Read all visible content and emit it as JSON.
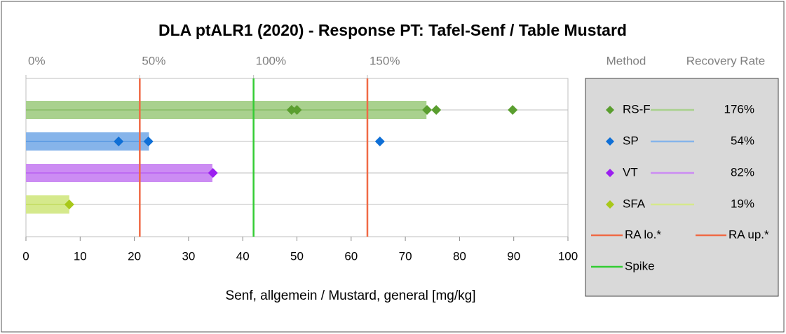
{
  "chart_data": {
    "type": "dot_bar",
    "title": "DLA ptALR1 (2020) - Response PT: Tafel-Senf / Table Mustard",
    "xlabel": "Senf, allgemein / Mustard, general [mg/kg]",
    "xlim": [
      0,
      100
    ],
    "xticks": [
      0,
      10,
      20,
      30,
      40,
      50,
      60,
      70,
      80,
      90,
      100
    ],
    "x2lim": [
      0,
      238.1
    ],
    "x2ticks": [
      {
        "value": 0,
        "label": "0%"
      },
      {
        "value": 50,
        "label": "50%"
      },
      {
        "value": 100,
        "label": "100%"
      },
      {
        "value": 150,
        "label": "150%"
      }
    ],
    "legend_headers": [
      "Method",
      "Recovery Rate"
    ],
    "series": [
      {
        "name": "RS-F",
        "color": "#5a9e2f",
        "bar_color": "#a9d18e",
        "mean": 73.9,
        "values": [
          49.0,
          50.0,
          74.0,
          75.7,
          89.8
        ],
        "recovery_rate": {
          "value": 176,
          "label": "176%"
        }
      },
      {
        "name": "SP",
        "color": "#0f6fd6",
        "bar_color": "#86b4ea",
        "mean": 22.7,
        "values": [
          17.1,
          22.6,
          65.3
        ],
        "recovery_rate": {
          "value": 54,
          "label": "54%"
        }
      },
      {
        "name": "VT",
        "color": "#9b1ff0",
        "bar_color": "#cc8cf3",
        "mean": 34.4,
        "values": [
          34.5
        ],
        "recovery_rate": {
          "value": 82,
          "label": "82%"
        }
      },
      {
        "name": "SFA",
        "color": "#a8c81a",
        "bar_color": "#d5e98c",
        "mean": 8.0,
        "values": [
          8.0
        ],
        "recovery_rate": {
          "value": 19,
          "label": "19%"
        }
      }
    ],
    "reference_lines": [
      {
        "name": "RA lo.*",
        "value": 21,
        "color": "#f06a45"
      },
      {
        "name": "RA up.*",
        "value": 63,
        "color": "#f06a45"
      },
      {
        "name": "Spike",
        "value": 42,
        "color": "#33cc33"
      }
    ]
  }
}
